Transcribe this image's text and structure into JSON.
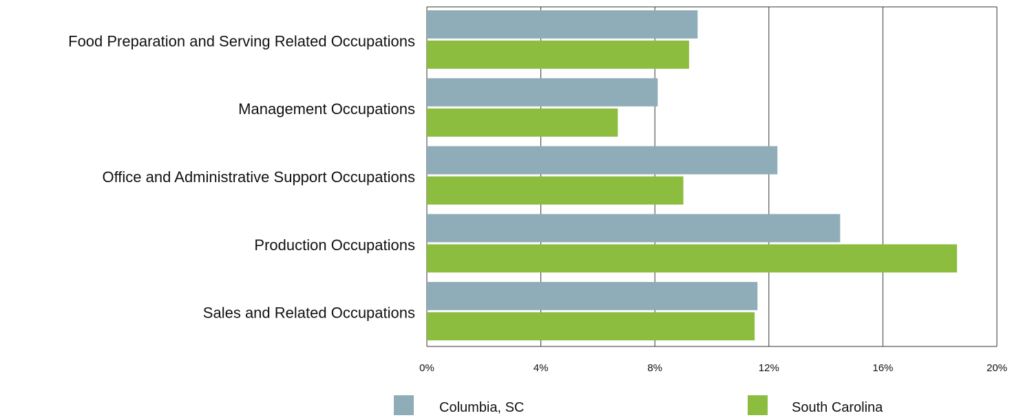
{
  "chart_data": {
    "type": "bar",
    "orientation": "horizontal",
    "categories": [
      "Food Preparation and Serving Related Occupations",
      "Management Occupations",
      "Office and Administrative Support Occupations",
      "Production Occupations",
      "Sales and Related Occupations"
    ],
    "series": [
      {
        "name": "Columbia, SC",
        "color": "#8fadb8",
        "values": [
          9.5,
          8.1,
          12.3,
          14.5,
          11.6
        ]
      },
      {
        "name": "South Carolina",
        "color": "#8cbd3e",
        "values": [
          9.2,
          6.7,
          9.0,
          18.6,
          11.5
        ]
      }
    ],
    "xlim": [
      0,
      20
    ],
    "x_ticks": [
      "0%",
      "4%",
      "8%",
      "12%",
      "16%",
      "20%"
    ],
    "x_tick_values": [
      0,
      4,
      8,
      12,
      16,
      20
    ],
    "grid": true,
    "legend_position": "bottom",
    "title": "",
    "xlabel": "",
    "ylabel": ""
  }
}
